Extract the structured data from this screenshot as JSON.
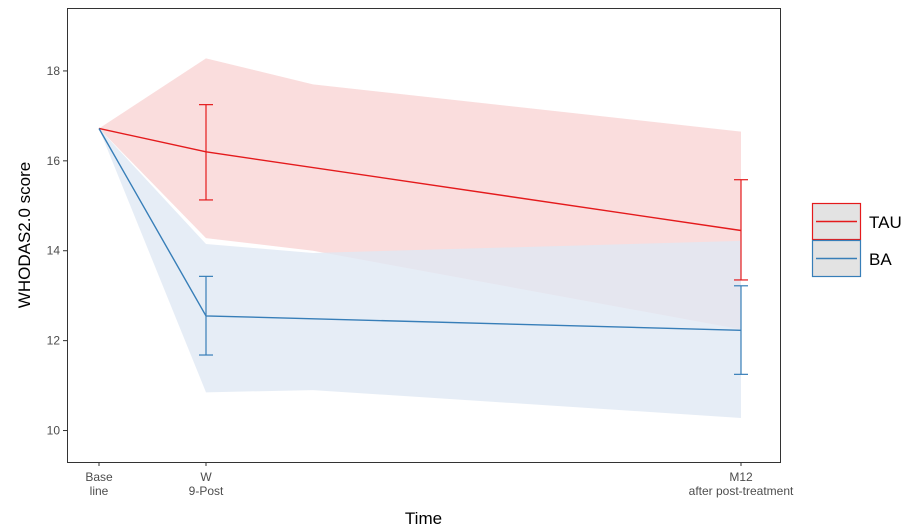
{
  "chart_data": {
    "type": "line",
    "title": "",
    "xlabel": "Time",
    "ylabel": "WHODAS2.0 score",
    "categories": [
      [
        "Base",
        "line"
      ],
      [
        "W",
        "9-Post"
      ],
      [
        "M12",
        "after post-treatment"
      ]
    ],
    "x_positions": [
      0,
      1,
      6
    ],
    "ylim": [
      9.3,
      19.4
    ],
    "yticks": [
      10,
      12,
      14,
      16,
      18
    ],
    "grid": false,
    "legend_position": "right",
    "band_knots_x": [
      0,
      1,
      2,
      6
    ],
    "series": [
      {
        "name": "TAU",
        "color": "#e41a1c",
        "fill": "#f8d3d3",
        "values": [
          16.72,
          16.2,
          14.45
        ],
        "error_low": [
          null,
          15.13,
          13.35
        ],
        "error_high": [
          null,
          17.25,
          15.58
        ],
        "band_low": [
          16.72,
          14.28,
          14.0,
          12.25
        ],
        "band_high": [
          16.72,
          18.28,
          17.7,
          16.65
        ]
      },
      {
        "name": "BA",
        "color": "#377eb8",
        "fill": "#dfe8f3",
        "values": [
          16.72,
          12.55,
          12.23
        ],
        "error_low": [
          null,
          11.68,
          11.25
        ],
        "error_high": [
          null,
          13.43,
          13.22
        ],
        "band_low": [
          16.72,
          10.85,
          10.9,
          10.28
        ],
        "band_high": [
          16.72,
          14.15,
          13.95,
          14.22
        ]
      }
    ]
  }
}
